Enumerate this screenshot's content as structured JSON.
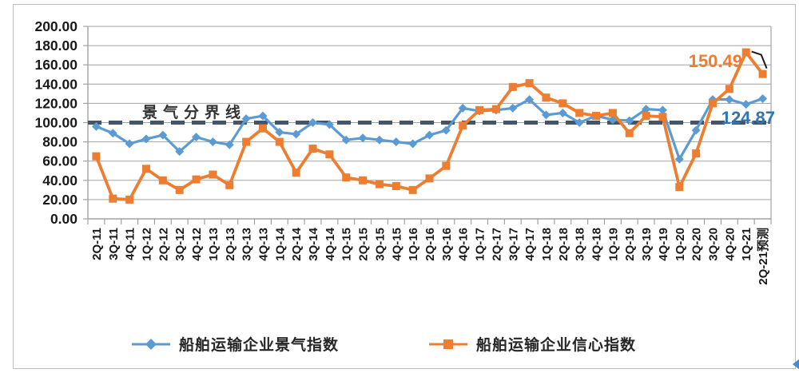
{
  "chart_data": {
    "type": "line",
    "title": "",
    "categories": [
      "2Q-11",
      "3Q-11",
      "4Q-11",
      "1Q-12",
      "2Q-12",
      "3Q-12",
      "4Q-12",
      "1Q-13",
      "2Q-13",
      "3Q-13",
      "4Q-13",
      "1Q-14",
      "2Q-14",
      "3Q-14",
      "4Q-14",
      "1Q-15",
      "2Q-15",
      "3Q-15",
      "4Q-15",
      "1Q-16",
      "2Q-16",
      "3Q-16",
      "4Q-16",
      "1Q-17",
      "2Q-17",
      "3Q-17",
      "4Q-17",
      "1Q-18",
      "2Q-18",
      "3Q-18",
      "4Q-18",
      "1Q-19",
      "2Q-19",
      "3Q-19",
      "4Q-19",
      "1Q-20",
      "2Q-20",
      "3Q-20",
      "4Q-20",
      "1Q-21",
      "2Q-21预测"
    ],
    "series": [
      {
        "name": "船舶运输企业景气指数",
        "color": "#5B9BD5",
        "marker": "diamond",
        "values": [
          96,
          89,
          78,
          83,
          87,
          70,
          85,
          80,
          77,
          104,
          107,
          90,
          88,
          100,
          98,
          82,
          84,
          82,
          80,
          78,
          87,
          92,
          115,
          112,
          113,
          115,
          124,
          108,
          110,
          100,
          107,
          103,
          102,
          114,
          113,
          62,
          92,
          124,
          124,
          119,
          124.87
        ]
      },
      {
        "name": "船舶运输企业信心指数",
        "color": "#ED7D31",
        "marker": "square",
        "values": [
          65,
          21,
          20,
          52,
          40,
          30,
          41,
          46,
          35,
          80,
          94,
          80,
          48,
          73,
          67,
          43,
          40,
          36,
          34,
          30,
          42,
          55,
          97,
          113,
          114,
          137,
          141,
          126,
          120,
          110,
          107,
          110,
          89,
          107,
          106,
          33,
          68,
          120,
          135,
          173,
          150.49
        ]
      }
    ],
    "ylim": [
      0,
      200
    ],
    "ytick_step": 20,
    "ytick_labels": [
      "0.00",
      "20.00",
      "40.00",
      "60.00",
      "80.00",
      "100.00",
      "120.00",
      "140.00",
      "160.00",
      "180.00",
      "200.00"
    ],
    "grid": true,
    "legend_position": "bottom",
    "reference_line": {
      "value": 100,
      "label": "景气分界线",
      "color": "#44546A",
      "style": "dashed"
    },
    "annotations": [
      {
        "text": "150.49",
        "series": "船舶运输企业信心指数",
        "category": "2Q-21预测",
        "value": 150.49,
        "color": "#ED7D31"
      },
      {
        "text": "124.87",
        "series": "船舶运输企业景气指数",
        "category": "2Q-21预测",
        "value": 124.87,
        "color": "#2E75B6"
      }
    ]
  },
  "colors": {
    "gridline": "#A3A3A3",
    "axis_text": "#1a1a1a",
    "connector": "#1a1a1a",
    "frame_border": "#bdbdbd",
    "corner_icon_blue": "#3f8fd8"
  }
}
